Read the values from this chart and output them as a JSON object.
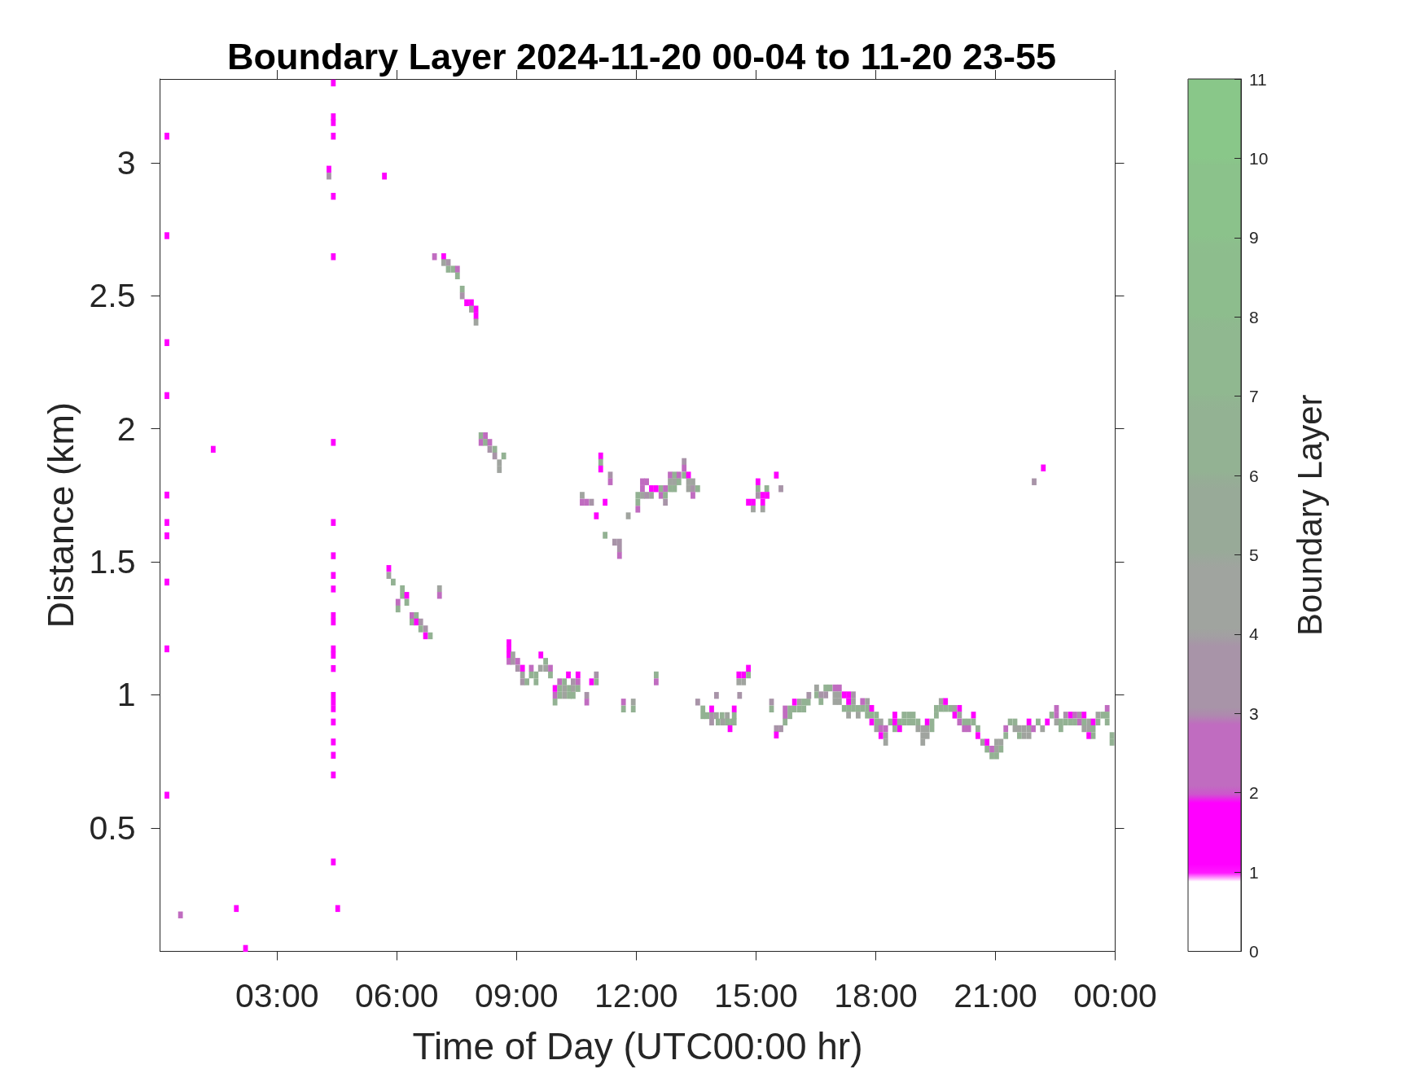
{
  "chart_data": {
    "type": "scatter",
    "title": "Boundary Layer 2024-11-20 00-04 to 11-20 23-55",
    "xlabel": "Time of Day (UTC00:00 hr)",
    "ylabel": "Distance (km)",
    "clabel": "Boundary Layer",
    "x": [
      0.24,
      0.24,
      0.24,
      0.24,
      0.24,
      0.24,
      0.24,
      0.24,
      0.24,
      0.24,
      0.58,
      1.4,
      1.98,
      2.21,
      4.41,
      4.41,
      4.41,
      4.41,
      4.3,
      4.3,
      4.41,
      4.41,
      4.41,
      4.41,
      4.41,
      4.41,
      4.41,
      4.41,
      4.41,
      4.41,
      4.41,
      4.41,
      4.41,
      4.41,
      4.41,
      4.41,
      4.41,
      4.41,
      4.41,
      4.41,
      4.52,
      5.69,
      6.945,
      7.175,
      7.175,
      7.29,
      7.29,
      7.41,
      7.52,
      7.52,
      7.64,
      7.64,
      7.75,
      7.87,
      7.87,
      7.985,
      7.985,
      7.985,
      8.11,
      8.22,
      8.11,
      8.22,
      8.33,
      8.33,
      8.455,
      8.455,
      8.68,
      8.57,
      8.57,
      5.8,
      5.8,
      5.91,
      6.14,
      6.14,
      6.25,
      6.03,
      6.25,
      6.03,
      6.38,
      6.49,
      6.38,
      6.49,
      6.6,
      6.6,
      6.72,
      6.72,
      6.84,
      7.07,
      7.07,
      8.81,
      8.81,
      8.81,
      8.81,
      8.91,
      8.91,
      9.03,
      9.03,
      9.15,
      9.37,
      9.6,
      9.73,
      9.85,
      9.61,
      9.73,
      9.15,
      9.37,
      9.49,
      9.85,
      9.15,
      9.26,
      9.49,
      10.3,
      10.54,
      11,
      10.08,
      10.2,
      10.42,
      10.54,
      10.88,
      11,
      9.965,
      10.08,
      10.2,
      10.32,
      10.42,
      10.54,
      9.965,
      10.08,
      10.2,
      10.32,
      10.42,
      10.76,
      9.965,
      10.76,
      11.68,
      11.925,
      11.68,
      11.925,
      12.5,
      12.5,
      13.54,
      14.01,
      13.67,
      13.89,
      14.455,
      13.67,
      13.77,
      14.01,
      14.15,
      14.28,
      14.455,
      13.89,
      14.05,
      14.28,
      14.4,
      14.35,
      14.59,
      14.57,
      14.69,
      14.81,
      14.57,
      14.69,
      14.81,
      15.39,
      15.39,
      15.51,
      15.625,
      15.51,
      15.73,
      15.85,
      15.965,
      15.73,
      15.85,
      15.73,
      15.965,
      16.09,
      16.2,
      16.31,
      16.09,
      16.2,
      16.325,
      13.89,
      14.17,
      14.455,
      11.11,
      11.11,
      11.11,
      11.35,
      11.35,
      10.645,
      10.645,
      10.76,
      10.88,
      11.22,
      11,
      11.8,
      11.22,
      11.46,
      11.58,
      11.58,
      11.58,
      12.04,
      12.155,
      12.26,
      12.155,
      12.38,
      12.5,
      12.62,
      12.73,
      12.85,
      12.96,
      12.04,
      12.155,
      12.26,
      12.38,
      12.62,
      12.73,
      12.04,
      12.73,
      12.85,
      12.96,
      13.07,
      13.2,
      13.31,
      12.85,
      12.96,
      13.07,
      13.31,
      13.42,
      13.31,
      13.42,
      13.54,
      13.42,
      13.2,
      13.2,
      15.51,
      15.05,
      15.05,
      15.27,
      15.625,
      15.05,
      15.17,
      15.28,
      14.81,
      14.93,
      15.17,
      14.93,
      15.17,
      22.2,
      21.97,
      16.52,
      16.52,
      16.63,
      16.63,
      16.75,
      16.75,
      16.86,
      16.98,
      16.98,
      16.98,
      17.09,
      17.09,
      17.09,
      17.21,
      17.21,
      17.32,
      17.32,
      17.32,
      17.32,
      17.44,
      17.44,
      17.44,
      17.56,
      17.56,
      17.67,
      17.67,
      17.79,
      17.79,
      17.79,
      17.9,
      17.9,
      17.9,
      18.02,
      18.02,
      18.02,
      18.13,
      18.13,
      18.13,
      18.25,
      18.25,
      18.25,
      18.37,
      18.48,
      18.48,
      18.48,
      18.6,
      18.6,
      18.71,
      18.71,
      18.83,
      18.83,
      18.94,
      18.94,
      19.06,
      19.06,
      19.18,
      19.18,
      19.18,
      19.29,
      19.29,
      19.29,
      19.41,
      19.41,
      19.52,
      19.52,
      19.64,
      19.64,
      19.75,
      19.75,
      19.87,
      19.98,
      19.98,
      20.1,
      20.1,
      20.1,
      20.22,
      20.22,
      20.33,
      20.33,
      20.45,
      20.45,
      20.56,
      20.56,
      20.68,
      20.79,
      20.79,
      20.91,
      20.91,
      21.03,
      21.03,
      21.03,
      21.14,
      21.14,
      21.26,
      21.26,
      21.37,
      21.49,
      21.49,
      21.6,
      21.6,
      21.72,
      21.72,
      21.84,
      21.84,
      21.84,
      21.95,
      22.07,
      22.18,
      22.3,
      22.41,
      22.53,
      22.53,
      22.53,
      22.64,
      22.64,
      22.76,
      22.76,
      22.88,
      22.88,
      22.99,
      22.99,
      23.11,
      23.11,
      23.22,
      23.22,
      23.22,
      23.34,
      23.34,
      23.34,
      23.45,
      23.45,
      23.45,
      23.57,
      23.57,
      23.69,
      23.8,
      23.8,
      23.8,
      23.92,
      23.92
    ],
    "values": [
      3.1,
      2.726,
      2.324,
      2.125,
      1.751,
      1.648,
      1.598,
      1.424,
      1.173,
      0.623,
      0.173,
      1.923,
      0.197,
      0.047,
      3.3,
      3.173,
      3.151,
      3.1,
      2.976,
      2.95,
      2.874,
      2.647,
      1.949,
      1.648,
      1.523,
      1.449,
      1.398,
      1.298,
      1.274,
      1.173,
      1.149,
      1.099,
      0.998,
      0.973,
      0.948,
      0.898,
      0.823,
      0.773,
      0.699,
      0.372,
      0.197,
      2.95,
      2.647,
      2.647,
      2.625,
      2.625,
      2.6,
      2.6,
      2.6,
      2.575,
      2.525,
      2.5,
      2.474,
      2.474,
      2.45,
      2.45,
      2.425,
      2.401,
      1.974,
      1.974,
      1.949,
      1.949,
      1.949,
      1.923,
      1.923,
      1.898,
      1.898,
      1.872,
      1.847,
      1.475,
      1.449,
      1.424,
      1.399,
      1.374,
      1.374,
      1.348,
      1.348,
      1.323,
      1.298,
      1.298,
      1.274,
      1.274,
      1.274,
      1.248,
      1.248,
      1.222,
      1.222,
      1.399,
      1.374,
      1.196,
      1.173,
      1.15,
      1.126,
      1.15,
      1.126,
      1.126,
      1.1,
      1.1,
      1.1,
      1.1,
      1.1,
      1.1,
      1.15,
      1.126,
      1.075,
      1.075,
      1.075,
      1.075,
      1.049,
      1.049,
      1.049,
      1.075,
      1.075,
      1.075,
      1.049,
      1.049,
      1.049,
      1.049,
      1.049,
      1.049,
      1.024,
      1.024,
      1.024,
      1.024,
      1.024,
      1.024,
      0.998,
      0.998,
      0.998,
      0.998,
      0.998,
      0.998,
      0.973,
      0.973,
      0.973,
      0.973,
      0.947,
      0.947,
      1.075,
      1.049,
      0.973,
      0.998,
      0.947,
      0.947,
      0.947,
      0.922,
      0.922,
      0.922,
      0.922,
      0.922,
      0.922,
      0.898,
      0.898,
      0.898,
      0.898,
      0.873,
      0.998,
      1.075,
      1.075,
      1.075,
      1.049,
      1.049,
      1.1,
      0.973,
      0.947,
      0.873,
      0.873,
      0.849,
      0.947,
      0.947,
      0.947,
      0.922,
      0.922,
      0.898,
      0.973,
      0.973,
      0.973,
      0.973,
      0.947,
      0.947,
      0.998,
      0.922,
      0.898,
      0.898,
      1.898,
      1.874,
      1.849,
      1.826,
      1.801,
      1.75,
      1.724,
      1.724,
      1.724,
      1.724,
      1.673,
      1.673,
      1.6,
      1.574,
      1.574,
      1.549,
      1.524,
      1.698,
      1.801,
      1.801,
      1.775,
      1.775,
      1.775,
      1.775,
      1.775,
      1.775,
      1.775,
      1.75,
      1.75,
      1.75,
      1.75,
      1.75,
      1.75,
      1.724,
      1.724,
      1.826,
      1.826,
      1.826,
      1.826,
      1.826,
      1.801,
      1.801,
      1.801,
      1.801,
      1.801,
      1.775,
      1.775,
      1.775,
      1.75,
      1.877,
      1.852,
      1.826,
      1.801,
      1.775,
      1.775,
      1.775,
      1.75,
      1.75,
      1.75,
      1.724,
      1.724,
      1.724,
      1.699,
      1.699,
      1.853,
      1.801,
      1.026,
      1.0,
      1.0,
      0.975,
      1.026,
      1.0,
      1.026,
      1.026,
      1.0,
      0.975,
      1.026,
      1.0,
      0.975,
      1.0,
      0.949,
      1.0,
      0.975,
      0.949,
      0.924,
      1.0,
      0.975,
      0.949,
      0.949,
      0.924,
      0.975,
      0.949,
      0.975,
      0.949,
      0.924,
      0.949,
      0.924,
      0.898,
      0.924,
      0.898,
      0.873,
      0.898,
      0.873,
      0.847,
      0.873,
      0.847,
      0.822,
      0.898,
      0.924,
      0.898,
      0.873,
      0.898,
      0.873,
      0.924,
      0.898,
      0.924,
      0.898,
      0.924,
      0.898,
      0.898,
      0.873,
      0.873,
      0.847,
      0.822,
      0.898,
      0.873,
      0.847,
      0.898,
      0.873,
      0.949,
      0.924,
      0.975,
      0.949,
      0.975,
      0.949,
      0.949,
      0.949,
      0.924,
      0.949,
      0.924,
      0.898,
      0.898,
      0.873,
      0.898,
      0.873,
      0.924,
      0.898,
      0.873,
      0.847,
      0.822,
      0.822,
      0.796,
      0.796,
      0.771,
      0.822,
      0.796,
      0.771,
      0.822,
      0.796,
      0.873,
      0.847,
      0.898,
      0.898,
      0.873,
      0.873,
      0.847,
      0.873,
      0.847,
      0.898,
      0.873,
      0.847,
      0.873,
      0.898,
      0.873,
      0.898,
      0.924,
      0.949,
      0.924,
      0.898,
      0.898,
      0.873,
      0.924,
      0.898,
      0.924,
      0.898,
      0.924,
      0.898,
      0.924,
      0.898,
      0.924,
      0.898,
      0.873,
      0.898,
      0.873,
      0.847,
      0.898,
      0.873,
      0.847,
      0.924,
      0.898,
      0.924,
      0.949,
      0.924,
      0.898,
      0.847,
      0.822
    ],
    "cvalues": [
      1.5,
      1.5,
      1.5,
      1.5,
      1.5,
      1.5,
      1.5,
      1.5,
      1.5,
      1.5,
      2.5,
      1.5,
      1.5,
      1.5,
      1.5,
      1.5,
      1.5,
      1.5,
      1.5,
      3.5,
      1.5,
      1.5,
      1.5,
      1.5,
      1.5,
      1.5,
      1.5,
      1.5,
      1.5,
      1.5,
      1.5,
      1.5,
      1.5,
      1.5,
      1.5,
      1.5,
      1.5,
      1.5,
      1.5,
      1.5,
      1.5,
      1.5,
      2.5,
      1.5,
      4.5,
      3.5,
      6.5,
      6.5,
      2.5,
      6.5,
      6.5,
      3.5,
      1.5,
      1.5,
      4.5,
      1.5,
      1.5,
      4.5,
      6.5,
      2.5,
      2.5,
      6.5,
      2.5,
      3.5,
      6.5,
      3.5,
      6.5,
      4.5,
      4.5,
      1.5,
      4.5,
      6.5,
      6.5,
      6.5,
      1.5,
      2.5,
      6.5,
      6.5,
      2.5,
      6.5,
      6.5,
      1.5,
      3.5,
      6.5,
      3.5,
      1.5,
      6.5,
      4.5,
      2.5,
      1.5,
      1.5,
      1.5,
      2.5,
      4.5,
      3.5,
      2.5,
      3.5,
      1.5,
      2.5,
      4.5,
      4.5,
      2.5,
      1.5,
      6.5,
      4.5,
      6.5,
      6.5,
      6.5,
      3.5,
      6.5,
      6.5,
      1.5,
      1.5,
      3.5,
      2.5,
      6.5,
      3.5,
      2.5,
      1.5,
      6.5,
      1.5,
      6.5,
      4.5,
      6.5,
      4.5,
      6.5,
      2.5,
      6.5,
      4.5,
      6.5,
      6.5,
      3.5,
      6.5,
      2.5,
      2.5,
      4.5,
      6.5,
      6.5,
      6.5,
      2.5,
      3.5,
      3.5,
      6.5,
      1.5,
      1.5,
      6.5,
      6.5,
      4.5,
      6.5,
      4.5,
      6.5,
      3.5,
      6.5,
      6.5,
      6.5,
      1.5,
      3.5,
      1.5,
      1.5,
      6.5,
      4.5,
      4.5,
      1.5,
      3.5,
      6.5,
      3.5,
      3.5,
      1.5,
      2.5,
      6.5,
      6.5,
      2.5,
      6.5,
      6.5,
      1.5,
      4.5,
      6.5,
      6.5,
      6.5,
      6.5,
      3.5,
      3.5,
      4.5,
      6.5,
      1.5,
      6.5,
      1.5,
      3.5,
      2.5,
      4.5,
      2.5,
      2.5,
      3.5,
      1.5,
      1.5,
      4.5,
      6.5,
      3.5,
      3.5,
      3.5,
      2.5,
      2.5,
      2.5,
      2.5,
      2.5,
      1.5,
      1.5,
      6.5,
      2.5,
      6.5,
      6.5,
      6.5,
      4.5,
      3.5,
      4.5,
      2.5,
      6.5,
      6.5,
      3.5,
      2.5,
      6.5,
      2.5,
      6.5,
      1.5,
      4.5,
      4.5,
      6.5,
      4.5,
      4.5,
      4.5,
      3.5,
      6.5,
      2.5,
      3.5,
      2.5,
      1.5,
      1.5,
      6.5,
      6.5,
      3.5,
      3.5,
      1.5,
      1.5,
      1.5,
      1.5,
      1.5,
      4.5,
      4.5,
      1.5,
      3.5,
      4.5,
      6.5,
      3.5,
      6.5,
      6.5,
      3.5,
      6.5,
      2.5,
      4.5,
      4.5,
      2.5,
      4.5,
      4.5,
      1.5,
      6.5,
      1.5,
      1.5,
      6.5,
      4.5,
      3.5,
      4.5,
      6.5,
      6.5,
      4.5,
      2.5,
      6.5,
      4.5,
      6.5,
      6.5,
      1.5,
      6.5,
      1.5,
      6.5,
      6.5,
      4.5,
      4.5,
      2.5,
      1.5,
      2.5,
      4.5,
      4.5,
      6.5,
      1.5,
      1.5,
      6.5,
      6.5,
      1.5,
      6.5,
      6.5,
      6.5,
      6.5,
      6.5,
      6.5,
      6.5,
      4.5,
      4.5,
      4.5,
      4.5,
      1.5,
      4.5,
      4.5,
      6.5,
      6.5,
      6.5,
      6.5,
      4.5,
      6.5,
      1.5,
      6.5,
      6.5,
      4.5,
      1.5,
      1.5,
      4.5,
      2.5,
      6.5,
      2.5,
      6.5,
      2.5,
      1.5,
      6.5,
      6.5,
      1.5,
      4.5,
      1.5,
      6.5,
      2.5,
      6.5,
      4.5,
      4.5,
      6.5,
      4.5,
      6.5,
      2.5,
      6.5,
      6.5,
      6.5,
      4.5,
      4.5,
      6.5,
      4.5,
      4.5,
      1.5,
      4.5,
      4.5,
      2.5,
      6.5,
      4.5,
      1.5,
      6.5,
      2.5,
      2.5,
      4.5,
      6.5,
      6.5,
      3.5,
      6.5,
      1.5,
      6.5,
      2.5,
      6.5,
      3.5,
      2.5,
      1.5,
      6.5,
      4.5,
      4.5,
      4.5,
      1.5,
      1.5,
      6.5,
      6.5,
      4.5,
      6.5,
      6.5,
      2.5,
      6.5,
      6.5,
      6.5,
      6.5
    ],
    "xlim": [
      0.067,
      24
    ],
    "xticks": [
      {
        "value": 3,
        "label": "03:00"
      },
      {
        "value": 6,
        "label": "06:00"
      },
      {
        "value": 9,
        "label": "09:00"
      },
      {
        "value": 12,
        "label": "12:00"
      },
      {
        "value": 15,
        "label": "15:00"
      },
      {
        "value": 18,
        "label": "18:00"
      },
      {
        "value": 21,
        "label": "21:00"
      },
      {
        "value": 24,
        "label": "00:00"
      }
    ],
    "ylim": [
      0.036,
      3.315
    ],
    "yticks": [
      0.5,
      1,
      1.5,
      2,
      2.5,
      3
    ],
    "clim": [
      0,
      11
    ],
    "cticks": [
      0,
      1,
      2,
      3,
      4,
      5,
      6,
      7,
      8,
      9,
      10,
      11
    ],
    "marker": "square"
  }
}
